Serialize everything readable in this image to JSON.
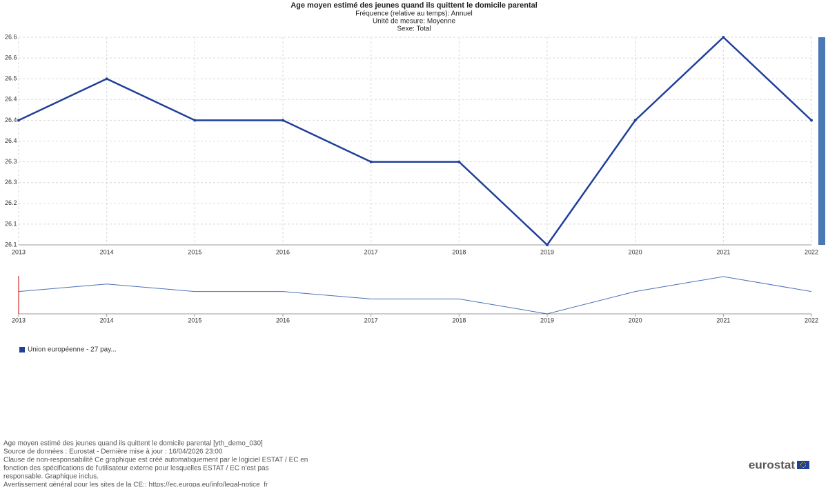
{
  "chart_data": {
    "type": "line",
    "title": "Age moyen estimé des jeunes quand ils quittent le domicile parental",
    "subtitles": [
      "Fréquence (relative au temps):  Annuel",
      "Unité de mesure:  Moyenne",
      "Sexe:  Total"
    ],
    "categories": [
      "2013",
      "2014",
      "2015",
      "2016",
      "2017",
      "2018",
      "2019",
      "2020",
      "2021",
      "2022"
    ],
    "series": [
      {
        "name": "Union européenne - 27 pay...",
        "color": "#1f3f99",
        "values": [
          26.4,
          26.5,
          26.4,
          26.4,
          26.3,
          26.3,
          26.1,
          26.4,
          26.6,
          26.4
        ]
      }
    ],
    "ylim": [
      26.1,
      26.6
    ],
    "yticks": [
      26.1,
      {
        "value": 26.15,
        "label": "26.1"
      },
      26.2,
      {
        "value": 26.25,
        "label": "26.3"
      },
      26.3,
      {
        "value": 26.35,
        "label": "26.4"
      },
      26.4,
      {
        "value": 26.45,
        "label": "26.4"
      },
      26.5,
      {
        "value": 26.55,
        "label": "26.6"
      },
      26.6
    ],
    "grid": true
  },
  "footer": [
    "Age moyen estimé des jeunes quand ils quittent le domicile parental [yth_demo_030]",
    "Source de données : Eurostat - Dernière mise à jour : 16/04/2026 23:00",
    "Clause de non-responsabilité Ce graphique est créé automatiquement par le logiciel ESTAT / EC en",
    "fonction des spécifications de l'utilisateur externe pour lesquelles ESTAT / EC n'est pas",
    "responsable. Graphique inclus.",
    "Avertissement général pour les sites de la CE:: https://ec.europa.eu/info/legal-notice_fr"
  ],
  "logo": "eurostat"
}
